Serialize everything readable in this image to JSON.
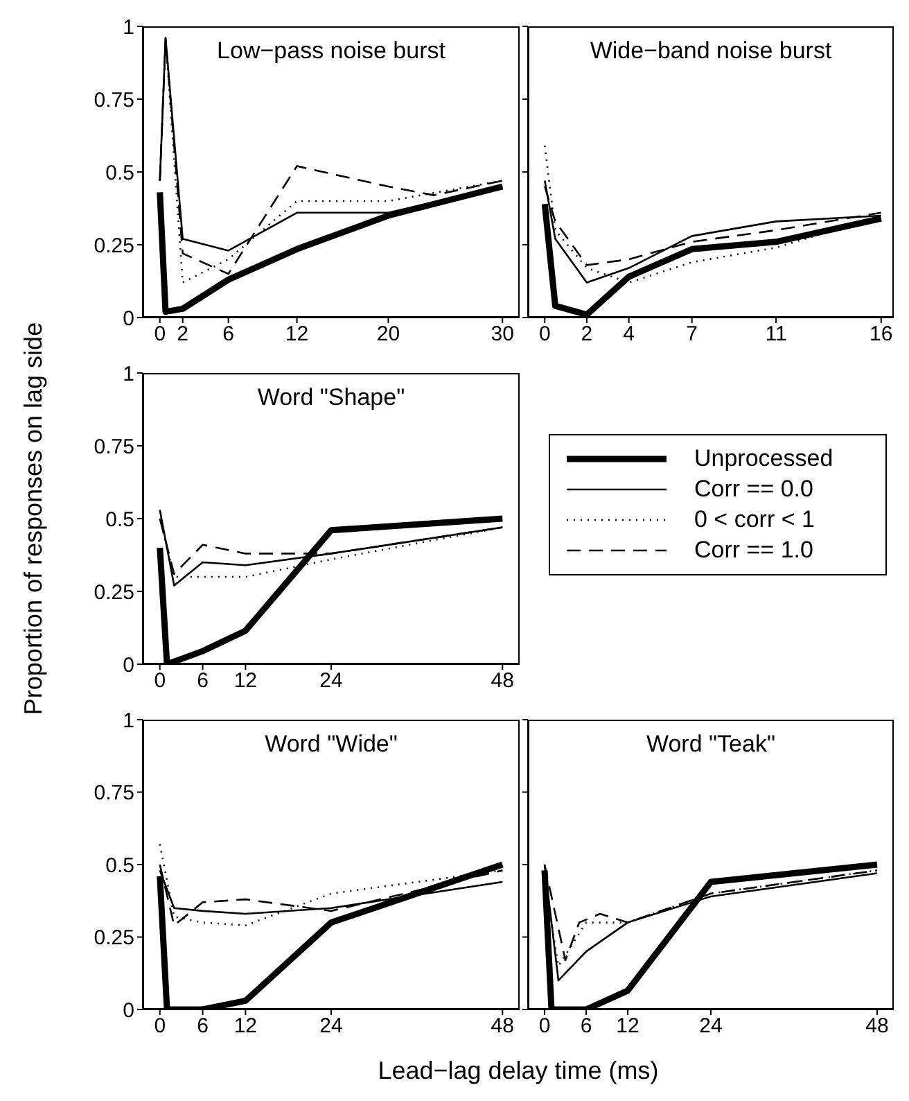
{
  "chart_data": [
    {
      "type": "line",
      "title": "Low−pass noise burst",
      "x": [
        0,
        0.5,
        2,
        6,
        12,
        20,
        30
      ],
      "xlim": [
        -1.5,
        31.5
      ],
      "xticks": [
        0,
        2,
        6,
        12,
        20,
        30
      ],
      "ylim": [
        0,
        1
      ],
      "yticks": [
        0,
        0.25,
        0.5,
        0.75,
        1
      ],
      "grid": false,
      "legend": false,
      "series": [
        {
          "color": "#000000",
          "line_style": "solid",
          "values": [
            0.43,
            0.02,
            0.03,
            0.13,
            0.235,
            0.35,
            0.45
          ]
        },
        {
          "color": "#000000",
          "line_style": "solid",
          "values": [
            0.47,
            0.96,
            0.27,
            0.23,
            0.36,
            0.36,
            0.45
          ]
        },
        {
          "color": "#000000",
          "line_style": "dotted",
          "values": [
            0.47,
            0.96,
            0.12,
            0.2,
            0.4,
            0.4,
            0.47
          ]
        },
        {
          "color": "#000000",
          "line_style": "dashed",
          "x": [
            0,
            0.5,
            2,
            6,
            12,
            20,
            24,
            30
          ],
          "values": [
            0.47,
            0.96,
            0.22,
            0.15,
            0.52,
            0.45,
            0.42,
            0.47
          ]
        }
      ]
    },
    {
      "type": "line",
      "title": "Wide−band noise burst",
      "x": [
        0,
        0.5,
        2,
        4,
        7,
        11,
        16
      ],
      "xlim": [
        -0.8,
        16.6
      ],
      "xticks": [
        0,
        2,
        4,
        7,
        11,
        16
      ],
      "ylim": [
        0,
        1
      ],
      "yticks": [
        0,
        0.25,
        0.5,
        0.75,
        1
      ],
      "tick_labels": "x",
      "grid": false,
      "legend": false,
      "series": [
        {
          "color": "#000000",
          "line_style": "solid",
          "values": [
            0.39,
            0.04,
            0.01,
            0.14,
            0.235,
            0.26,
            0.34
          ]
        },
        {
          "color": "#000000",
          "line_style": "solid",
          "values": [
            0.47,
            0.27,
            0.12,
            0.17,
            0.28,
            0.33,
            0.35
          ]
        },
        {
          "color": "#000000",
          "line_style": "dotted",
          "values": [
            0.59,
            0.3,
            0.17,
            0.12,
            0.19,
            0.24,
            0.35
          ]
        },
        {
          "color": "#000000",
          "line_style": "dashed",
          "values": [
            0.45,
            0.33,
            0.18,
            0.2,
            0.26,
            0.3,
            0.36
          ]
        }
      ]
    },
    {
      "type": "line",
      "title": "Word \"Shape\"",
      "ylabel": "Proportion of responses on lag side",
      "x": [
        0,
        2,
        6,
        12,
        24,
        48
      ],
      "xlim": [
        -2.4,
        50.4
      ],
      "xticks": [
        0,
        6,
        12,
        24,
        48
      ],
      "ylim": [
        0,
        1
      ],
      "yticks": [
        0,
        0.25,
        0.5,
        0.75,
        1
      ],
      "grid": false,
      "legend": "right",
      "series": [
        {
          "name": "Unprocessed",
          "color": "#000000",
          "line_style": "solid",
          "x": [
            0,
            1,
            6,
            12,
            24,
            48
          ],
          "values": [
            0.4,
            0,
            0.045,
            0.115,
            0.46,
            0.5
          ]
        },
        {
          "name": "Corr == 0.0",
          "color": "#000000",
          "line_style": "solid",
          "values": [
            0.53,
            0.27,
            0.35,
            0.34,
            0.38,
            0.47
          ]
        },
        {
          "name": "0 < corr < 1",
          "color": "#000000",
          "line_style": "dotted",
          "values": [
            0.5,
            0.3,
            0.3,
            0.3,
            0.36,
            0.47
          ]
        },
        {
          "name": "Corr == 1.0",
          "color": "#000000",
          "line_style": "dashed",
          "values": [
            0.5,
            0.31,
            0.41,
            0.38,
            0.38,
            0.47
          ]
        }
      ]
    },
    {
      "type": "line",
      "title": "Word \"Wide\"",
      "xlabel": "Lead−lag delay time (ms)",
      "x": [
        0,
        2,
        6,
        12,
        24,
        48
      ],
      "xlim": [
        -2.4,
        50.4
      ],
      "xticks": [
        0,
        6,
        12,
        24,
        48
      ],
      "ylim": [
        0,
        1
      ],
      "yticks": [
        0,
        0.25,
        0.5,
        0.75,
        1
      ],
      "grid": false,
      "legend": false,
      "series": [
        {
          "color": "#000000",
          "line_style": "solid",
          "x": [
            0,
            1,
            6,
            12,
            24,
            48
          ],
          "values": [
            0.46,
            0,
            0,
            0.03,
            0.3,
            0.5
          ]
        },
        {
          "color": "#000000",
          "line_style": "solid",
          "values": [
            0.48,
            0.35,
            0.34,
            0.33,
            0.35,
            0.44
          ]
        },
        {
          "color": "#000000",
          "line_style": "dotted",
          "values": [
            0.57,
            0.32,
            0.3,
            0.29,
            0.4,
            0.48
          ]
        },
        {
          "color": "#000000",
          "line_style": "dashed",
          "values": [
            0.5,
            0.29,
            0.37,
            0.38,
            0.34,
            0.48
          ]
        }
      ]
    },
    {
      "type": "line",
      "title": "Word \"Teak\"",
      "x": [
        0,
        2,
        6,
        12,
        24,
        48
      ],
      "xlim": [
        -2.4,
        50.4
      ],
      "xticks": [
        0,
        6,
        12,
        24,
        48
      ],
      "ylim": [
        0,
        1
      ],
      "yticks": [
        0,
        0.25,
        0.5,
        0.75,
        1
      ],
      "tick_labels": "x",
      "grid": false,
      "legend": false,
      "series": [
        {
          "color": "#000000",
          "line_style": "solid",
          "x": [
            0,
            1,
            6,
            12,
            24,
            48
          ],
          "values": [
            0.48,
            0,
            0,
            0.065,
            0.44,
            0.5
          ]
        },
        {
          "color": "#000000",
          "line_style": "solid",
          "values": [
            0.5,
            0.1,
            0.2,
            0.3,
            0.39,
            0.47
          ]
        },
        {
          "color": "#000000",
          "line_style": "dotted",
          "values": [
            0.45,
            0.15,
            0.3,
            0.3,
            0.4,
            0.48
          ]
        },
        {
          "color": "#000000",
          "line_style": "dashed",
          "x": [
            0,
            3,
            5,
            8,
            12,
            24,
            48
          ],
          "values": [
            0.5,
            0.17,
            0.3,
            0.33,
            0.3,
            0.4,
            0.48
          ]
        }
      ]
    }
  ]
}
